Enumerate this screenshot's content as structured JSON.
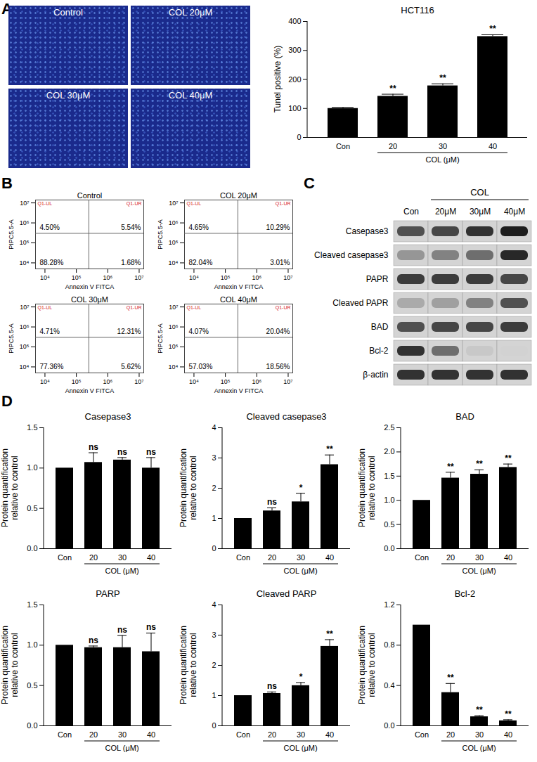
{
  "panel_labels": [
    "A",
    "B",
    "C",
    "D"
  ],
  "tunel_images": {
    "labels": [
      "Control",
      "COL 20μM",
      "COL 30μM",
      "COL 40μM"
    ]
  },
  "chart_data": [
    {
      "type": "bar",
      "title": "HCT116",
      "ylabel": "Tunel positive (%)",
      "categories": [
        "Con",
        "20",
        "30",
        "40"
      ],
      "values": [
        100,
        142,
        178,
        348
      ],
      "errors": [
        4,
        7,
        7,
        6
      ],
      "significance": [
        null,
        "**",
        "**",
        "**"
      ],
      "color": "#000000",
      "ylim": [
        0,
        400
      ],
      "yticks": [
        0,
        100,
        200,
        300,
        400
      ],
      "x_group": {
        "label": "COL (μM)",
        "categories": [
          "20",
          "30",
          "40"
        ]
      }
    },
    {
      "type": "bar",
      "title": "Casepase3",
      "ylabel": "Protein quantification\nrelative to control",
      "categories": [
        "Con",
        "20",
        "30",
        "40"
      ],
      "values": [
        1,
        1.07,
        1.1,
        1.0
      ],
      "errors": [
        0,
        0.12,
        0.03,
        0.13
      ],
      "significance": [
        null,
        "ns",
        "ns",
        "ns"
      ],
      "color": "#000000",
      "ylim": [
        0,
        1.5
      ],
      "yticks": [
        {
          "value": 0,
          "label": "0.0"
        },
        {
          "value": 0.5,
          "label": "0.5"
        },
        {
          "value": 1,
          "label": "1.0"
        },
        {
          "value": 1.5,
          "label": "1.5"
        }
      ],
      "x_group": {
        "label": "COL (μM)",
        "categories": [
          "20",
          "30",
          "40"
        ]
      }
    },
    {
      "type": "bar",
      "title": "Cleaved casepase3",
      "ylabel": "Protein quantification\nrelative to control",
      "categories": [
        "Con",
        "20",
        "30",
        "40"
      ],
      "values": [
        1,
        1.25,
        1.55,
        2.78
      ],
      "errors": [
        0,
        0.1,
        0.28,
        0.32
      ],
      "significance": [
        null,
        "ns",
        "*",
        "**"
      ],
      "color": "#000000",
      "ylim": [
        0,
        4
      ],
      "yticks": [
        0,
        1,
        2,
        3,
        4
      ],
      "x_group": {
        "label": "COL (μM)",
        "categories": [
          "20",
          "30",
          "40"
        ]
      }
    },
    {
      "type": "bar",
      "title": "BAD",
      "ylabel": "Protein quantification\nrelative to control",
      "categories": [
        "Con",
        "20",
        "30",
        "40"
      ],
      "values": [
        1,
        1.46,
        1.54,
        1.68
      ],
      "errors": [
        0,
        0.12,
        0.09,
        0.07
      ],
      "significance": [
        null,
        "**",
        "**",
        "**"
      ],
      "color": "#000000",
      "ylim": [
        0,
        2.5
      ],
      "yticks": [
        {
          "value": 0,
          "label": "0.0"
        },
        {
          "value": 0.5,
          "label": "0.5"
        },
        {
          "value": 1,
          "label": "1.0"
        },
        {
          "value": 1.5,
          "label": "1.5"
        },
        {
          "value": 2,
          "label": "2.0"
        },
        {
          "value": 2.5,
          "label": "2.5"
        }
      ],
      "x_group": {
        "label": "COL (μM)",
        "categories": [
          "20",
          "30",
          "40"
        ]
      }
    },
    {
      "type": "bar",
      "title": "PARP",
      "ylabel": "Protein quantification\nrelative to control",
      "categories": [
        "Con",
        "20",
        "30",
        "40"
      ],
      "values": [
        1,
        0.97,
        0.97,
        0.92
      ],
      "errors": [
        0,
        0.02,
        0.15,
        0.23
      ],
      "significance": [
        null,
        "ns",
        "ns",
        "ns"
      ],
      "color": "#000000",
      "ylim": [
        0,
        1.5
      ],
      "yticks": [
        {
          "value": 0,
          "label": "0.0"
        },
        {
          "value": 0.5,
          "label": "0.5"
        },
        {
          "value": 1,
          "label": "1.0"
        },
        {
          "value": 1.5,
          "label": "1.5"
        }
      ],
      "x_group": {
        "label": "COL (μM)",
        "categories": [
          "20",
          "30",
          "40"
        ]
      }
    },
    {
      "type": "bar",
      "title": "Cleaved PARP",
      "ylabel": "Protein quantification\nrelative to control",
      "categories": [
        "Con",
        "20",
        "30",
        "40"
      ],
      "values": [
        1,
        1.07,
        1.33,
        2.63
      ],
      "errors": [
        0,
        0.05,
        0.1,
        0.22
      ],
      "significance": [
        null,
        "ns",
        "*",
        "**"
      ],
      "color": "#000000",
      "ylim": [
        0,
        4
      ],
      "yticks": [
        0,
        1,
        2,
        3,
        4
      ],
      "x_group": {
        "label": "COL (μM)",
        "categories": [
          "20",
          "30",
          "40"
        ]
      }
    },
    {
      "type": "bar",
      "title": "Bcl-2",
      "ylabel": "Protein quantification\nrelative to control",
      "categories": [
        "Con",
        "20",
        "30",
        "40"
      ],
      "values": [
        1,
        0.33,
        0.09,
        0.05
      ],
      "errors": [
        0,
        0.09,
        0.01,
        0.01
      ],
      "significance": [
        null,
        "**",
        "**",
        "**"
      ],
      "color": "#000000",
      "ylim": [
        0,
        1.2
      ],
      "yticks": [
        {
          "value": 0,
          "label": "0.0"
        },
        {
          "value": 0.4,
          "label": "0.4"
        },
        {
          "value": 0.8,
          "label": "0.8"
        },
        {
          "value": 1.2,
          "label": "1.2"
        }
      ],
      "x_group": {
        "label": "COL (μM)",
        "categories": [
          "20",
          "30",
          "40"
        ]
      }
    }
  ],
  "flow_cytometry": {
    "x_label": "Annexin V FITCA",
    "y_label": "PIPC5.5-A",
    "quadrant_names": [
      "Q1-UL",
      "Q1-UR"
    ],
    "xlim": [
      5000,
      14000000
    ],
    "ylim": [
      5000,
      14000000
    ],
    "xticks": [
      {
        "value": 10000,
        "label": "10⁴"
      },
      {
        "value": 100000,
        "label": "10⁵"
      },
      {
        "value": 1000000,
        "label": "10⁶"
      },
      {
        "value": 10000000,
        "label": "10⁷"
      }
    ],
    "yticks": [
      {
        "value": 10000,
        "label": "10⁴"
      },
      {
        "value": 100000,
        "label": "10⁵"
      },
      {
        "value": 1000000,
        "label": "10⁶"
      },
      {
        "value": 10000000,
        "label": "10⁷"
      }
    ],
    "gate_x": 250000,
    "gate_y": 300000,
    "plots": [
      {
        "title": "Control",
        "UL": "4.50%",
        "UR": "5.54%",
        "LL": "88.28%",
        "LR": "1.68%"
      },
      {
        "title": "COL 20μM",
        "UL": "4.65%",
        "UR": "10.29%",
        "LL": "82.04%",
        "LR": "3.01%"
      },
      {
        "title": "COL 30μM",
        "UL": "4.71%",
        "UR": "12.31%",
        "LL": "77.36%",
        "LR": "5.62%"
      },
      {
        "title": "COL 40μM",
        "UL": "4.07%",
        "UR": "20.04%",
        "LL": "57.03%",
        "LR": "18.56%"
      }
    ]
  },
  "western_blot": {
    "group_label": "COL",
    "group_lanes": [
      "20μM",
      "30μM",
      "40μM"
    ],
    "lanes": [
      "Con",
      "20μM",
      "30μM",
      "40μM"
    ],
    "intensity_range": [
      0,
      1
    ],
    "rows": [
      {
        "label": "Casepase3",
        "intensity": [
          0.7,
          0.75,
          0.85,
          0.95
        ]
      },
      {
        "label": "Cleaved casepase3",
        "intensity": [
          0.35,
          0.45,
          0.55,
          0.9
        ]
      },
      {
        "label": "PAPR",
        "intensity": [
          0.8,
          0.8,
          0.8,
          0.75
        ]
      },
      {
        "label": "Cleaved PAPR",
        "intensity": [
          0.25,
          0.3,
          0.45,
          0.7
        ]
      },
      {
        "label": "BAD",
        "intensity": [
          0.7,
          0.75,
          0.75,
          0.8
        ]
      },
      {
        "label": "Bcl-2",
        "intensity": [
          0.85,
          0.55,
          0.1,
          0.05
        ]
      },
      {
        "label": "β-actin",
        "intensity": [
          0.85,
          0.85,
          0.85,
          0.85
        ]
      }
    ]
  }
}
